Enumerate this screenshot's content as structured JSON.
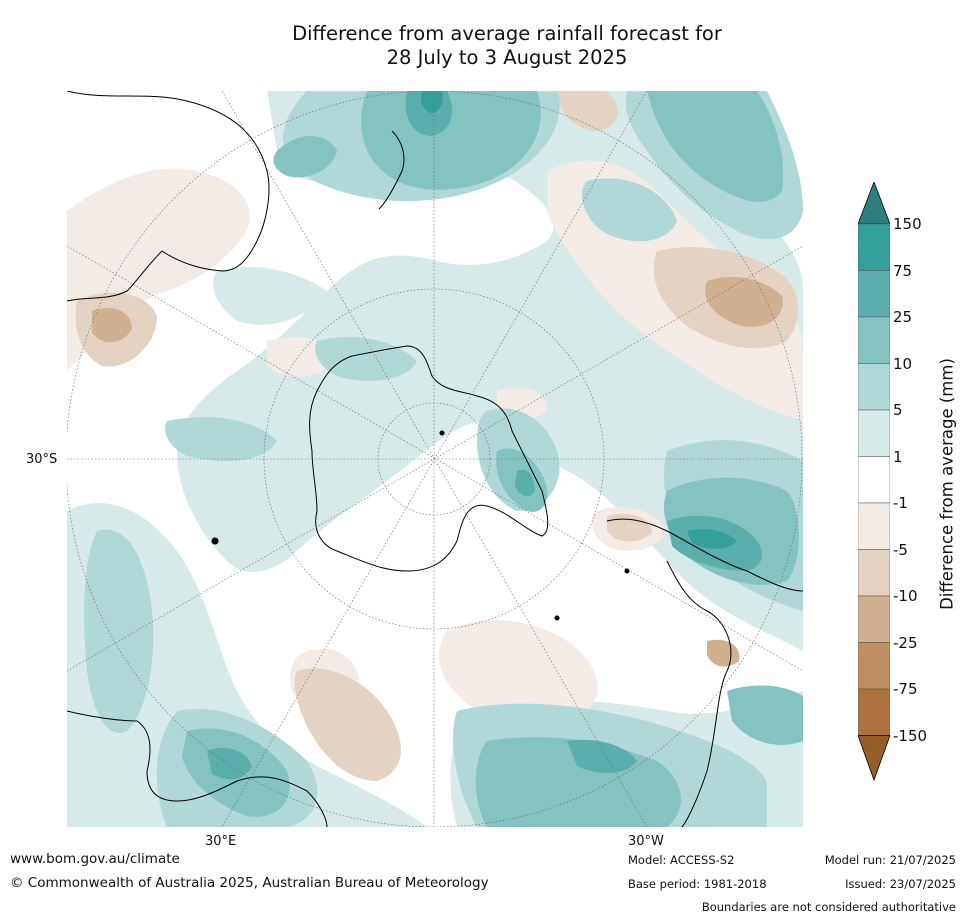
{
  "title_line1": "Difference from average rainfall forecast for",
  "title_line2": "28 July to 3 August 2025",
  "map": {
    "projection": "south-polar-stereographic",
    "lat_label": "30°S",
    "lon_labels": [
      "30°E",
      "30°W"
    ]
  },
  "colorbar": {
    "title": "Difference from average (mm)",
    "ticks": [
      "150",
      "75",
      "25",
      "10",
      "5",
      "1",
      "-1",
      "-5",
      "-10",
      "-25",
      "-75",
      "-150"
    ],
    "colors": {
      "over": "#2c7f7c",
      "75_150": "#359f9b",
      "25_75": "#5aaeac",
      "10_25": "#85c3c1",
      "5_10": "#b0d8d7",
      "1_5": "#d6eae9",
      "m1_1": "#ffffff",
      "m5_m1": "#f3ebe5",
      "m10_m5": "#e4d2c2",
      "m25_m10": "#d0b090",
      "m75_m25": "#bf8f62",
      "m150_m75": "#ad733f",
      "under": "#955d27"
    }
  },
  "footer": {
    "website": "www.bom.gov.au/climate",
    "copyright": "© Commonwealth of Australia 2025, Australian Bureau of Meteorology",
    "model": "Model: ACCESS-S2",
    "base_period": "Base period: 1981-2018",
    "model_run": "Model run: 21/07/2025",
    "issued": "Issued: 23/07/2025",
    "disclaimer": "Boundaries are not considered authoritative"
  }
}
